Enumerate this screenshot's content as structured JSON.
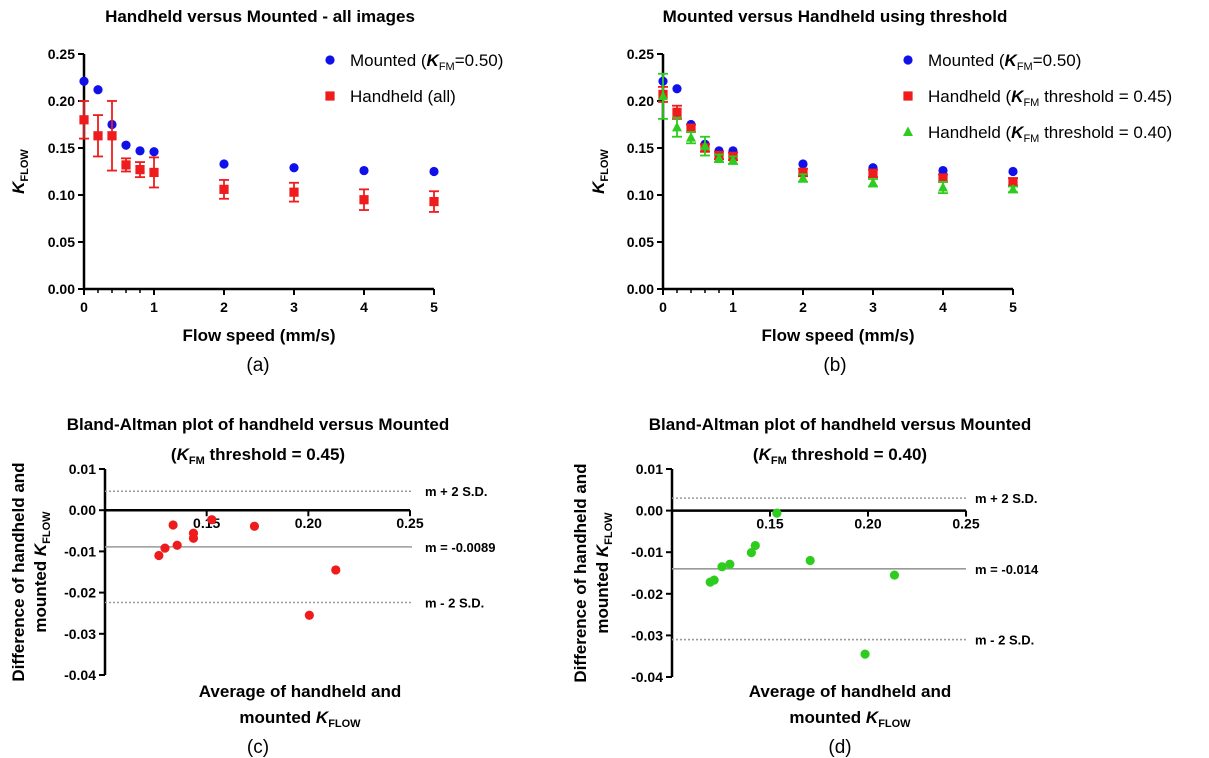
{
  "colors": {
    "mounted": "#1010e8",
    "handheld_045": "#ee1c1c",
    "handheld_040": "#2ecc1e",
    "reference_line": "#999999",
    "axis": "#000000"
  },
  "chart_data": [
    {
      "panel": "a",
      "type": "scatter",
      "title": "Handheld versus Mounted - all images",
      "xlabel": "Flow speed (mm/s)",
      "ylabel": {
        "main": "K",
        "sub": "FLOW"
      },
      "caption": "(a)",
      "xlim": [
        0,
        5
      ],
      "ylim": [
        0,
        0.25
      ],
      "xticks": [
        0,
        1,
        2,
        3,
        4,
        5
      ],
      "yticks": [
        0.0,
        0.05,
        0.1,
        0.15,
        0.2,
        0.25
      ],
      "legend_position": "top-right",
      "series": [
        {
          "name": "Mounted (K_FM=0.50)",
          "legend": {
            "pre": "Mounted (",
            "k": "K",
            "sub": "FM",
            "post": "=0.50)"
          },
          "marker": "circle",
          "color": "#1010e8",
          "x": [
            0,
            0.2,
            0.4,
            0.6,
            0.8,
            1,
            2,
            3,
            4,
            5
          ],
          "y": [
            0.221,
            0.212,
            0.175,
            0.153,
            0.147,
            0.146,
            0.133,
            0.129,
            0.126,
            0.125
          ]
        },
        {
          "name": "Handheld (all)",
          "legend": {
            "pre": "Handheld (all)",
            "k": "",
            "sub": "",
            "post": ""
          },
          "marker": "square",
          "color": "#ee1c1c",
          "x": [
            0,
            0.2,
            0.4,
            0.6,
            0.8,
            1,
            2,
            3,
            4,
            5
          ],
          "y": [
            0.18,
            0.163,
            0.163,
            0.132,
            0.127,
            0.124,
            0.106,
            0.103,
            0.095,
            0.093
          ],
          "err": [
            0.02,
            0.022,
            0.037,
            0.007,
            0.008,
            0.016,
            0.01,
            0.01,
            0.011,
            0.011
          ]
        }
      ]
    },
    {
      "panel": "b",
      "type": "scatter",
      "title": "Mounted versus Handheld using threshold",
      "xlabel": "Flow speed (mm/s)",
      "ylabel": {
        "main": "K",
        "sub": "FLOW"
      },
      "caption": "(b)",
      "xlim": [
        0,
        5
      ],
      "ylim": [
        0,
        0.25
      ],
      "xticks": [
        0,
        1,
        2,
        3,
        4,
        5
      ],
      "yticks": [
        0.0,
        0.05,
        0.1,
        0.15,
        0.2,
        0.25
      ],
      "legend_position": "top-right",
      "series": [
        {
          "name": "Mounted (K_FM=0.50)",
          "legend": {
            "pre": "Mounted (",
            "k": "K",
            "sub": "FM",
            "post": "=0.50)"
          },
          "marker": "circle",
          "color": "#1010e8",
          "x": [
            0,
            0.2,
            0.4,
            0.6,
            0.8,
            1,
            2,
            3,
            4,
            5
          ],
          "y": [
            0.221,
            0.213,
            0.175,
            0.154,
            0.147,
            0.147,
            0.133,
            0.129,
            0.126,
            0.125
          ]
        },
        {
          "name": "Handheld (K_FM threshold = 0.45)",
          "legend": {
            "pre": "Handheld (",
            "k": "K",
            "sub": "FM",
            "post": " threshold = 0.45)"
          },
          "marker": "square",
          "color": "#ee1c1c",
          "x": [
            0,
            0.2,
            0.4,
            0.6,
            0.8,
            1,
            2,
            3,
            4,
            5
          ],
          "y": [
            0.207,
            0.188,
            0.171,
            0.15,
            0.142,
            0.141,
            0.124,
            0.123,
            0.118,
            0.114
          ],
          "err": [
            0.008,
            0.007,
            0.004,
            0.004,
            0.004,
            0.004,
            0.004,
            0.004,
            0.004,
            0.004
          ]
        },
        {
          "name": "Handheld (K_FM threshold = 0.40)",
          "legend": {
            "pre": "Handheld (",
            "k": "K",
            "sub": "FM",
            "post": " threshold = 0.40)"
          },
          "marker": "triangle",
          "color": "#2ecc1e",
          "x": [
            0,
            0.2,
            0.4,
            0.6,
            0.8,
            1,
            2,
            3,
            4,
            5
          ],
          "y": [
            0.205,
            0.172,
            0.161,
            0.152,
            0.139,
            0.137,
            0.118,
            0.113,
            0.108,
            0.106
          ],
          "err": [
            0.024,
            0.01,
            0.006,
            0.01,
            0.004,
            0.004,
            0.004,
            0.004,
            0.006,
            0.003
          ]
        }
      ]
    },
    {
      "panel": "c",
      "type": "scatter",
      "title": "Bland-Altman plot of handheld versus Mounted",
      "subtitle": {
        "pre": "(",
        "k": "K",
        "sub": "FM",
        "post": " threshold = 0.45)"
      },
      "xlabel": {
        "line1": "Average of handheld and",
        "line2": "mounted ",
        "k": "K",
        "sub": "FLOW"
      },
      "ylabel": {
        "line1": "Difference of handheld and",
        "line2": "mounted ",
        "k": "K",
        "sub": "FLOW"
      },
      "caption": "(c)",
      "xlim": [
        0,
        0.25
      ],
      "ylim": [
        -0.04,
        0.01
      ],
      "xtick_labels": [
        "0.15",
        "0.20",
        "0.25"
      ],
      "xticks": [
        0.15,
        0.2,
        0.25
      ],
      "yticks": [
        0.01,
        0.0,
        -0.01,
        -0.02,
        -0.03,
        -0.04
      ],
      "ytick_labels": [
        "0.01",
        "0.00",
        "-0.01",
        "-0.02",
        "-0.03",
        "-0.04"
      ],
      "reference_lines": [
        {
          "y": 0.0046,
          "label": "m + 2 S.D.",
          "style": "dotted"
        },
        {
          "y": -0.0089,
          "label": "m = -0.0089",
          "style": "solid"
        },
        {
          "y": -0.0224,
          "label": "m - 2 S.D.",
          "style": "dotted"
        }
      ],
      "series": [
        {
          "name": "",
          "marker": "circle",
          "color": "#ee1c1c",
          "x": [
            0.1265,
            0.1295,
            0.1335,
            0.1355,
            0.1435,
            0.1435,
            0.1525,
            0.1735,
            0.2005,
            0.2135
          ],
          "y": [
            -0.011,
            -0.0092,
            -0.0036,
            -0.0085,
            -0.0056,
            -0.0068,
            -0.0023,
            -0.0039,
            -0.0255,
            -0.0145
          ]
        }
      ]
    },
    {
      "panel": "d",
      "type": "scatter",
      "title": "Bland-Altman plot of handheld versus Mounted",
      "subtitle": {
        "pre": "(",
        "k": "K",
        "sub": "FM",
        "post": " threshold = 0.40)"
      },
      "xlabel": {
        "line1": "Average of handheld and",
        "line2": "mounted ",
        "k": "K",
        "sub": "FLOW"
      },
      "ylabel": {
        "line1": "Difference of handheld and",
        "line2": "mounted ",
        "k": "K",
        "sub": "FLOW"
      },
      "caption": "(d)",
      "xlim": [
        0,
        0.25
      ],
      "ylim": [
        -0.04,
        0.01
      ],
      "xtick_labels": [
        "0.15",
        "0.20",
        "0.25"
      ],
      "xticks": [
        0.15,
        0.2,
        0.25
      ],
      "yticks": [
        0.01,
        0.0,
        -0.01,
        -0.02,
        -0.03,
        -0.04
      ],
      "ytick_labels": [
        "0.01",
        "0.00",
        "-0.01",
        "-0.02",
        "-0.03",
        "-0.04"
      ],
      "reference_lines": [
        {
          "y": 0.003,
          "label": "m + 2 S.D.",
          "style": "dotted"
        },
        {
          "y": -0.014,
          "label": "m = -0.014",
          "style": "solid"
        },
        {
          "y": -0.031,
          "label": "m - 2 S.D.",
          "style": "dotted"
        }
      ],
      "series": [
        {
          "name": "",
          "marker": "circle",
          "color": "#2ecc1e",
          "x": [
            0.1195,
            0.1215,
            0.1255,
            0.1295,
            0.1405,
            0.1425,
            0.1535,
            0.1705,
            0.1985,
            0.2135
          ],
          "y": [
            -0.0172,
            -0.0167,
            -0.0135,
            -0.0129,
            -0.0101,
            -0.0084,
            -0.0006,
            -0.012,
            -0.0345,
            -0.0155
          ]
        }
      ]
    }
  ]
}
